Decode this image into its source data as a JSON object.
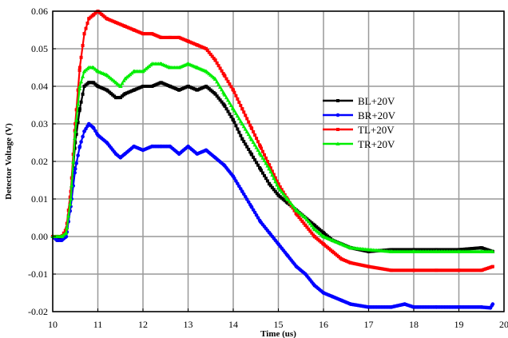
{
  "chart_data": {
    "type": "line",
    "title": "",
    "xlabel": "Time  (us)",
    "ylabel": "Detector  Voltage  (V)",
    "xlim": [
      10,
      20
    ],
    "ylim": [
      -0.02,
      0.06
    ],
    "xticks": [
      "10",
      "11",
      "12",
      "13",
      "14",
      "15",
      "16",
      "17",
      "18",
      "19",
      "20"
    ],
    "yticks": [
      "-0.02",
      "-0.01",
      "0.00",
      "0.01",
      "0.02",
      "0.03",
      "0.04",
      "0.05",
      "0.06"
    ],
    "grid": true,
    "legend_position": "center-right",
    "series": [
      {
        "name": "BL+20V",
        "color": "#000000",
        "marker": "square",
        "x": [
          10.0,
          10.1,
          10.2,
          10.3,
          10.4,
          10.5,
          10.6,
          10.7,
          10.8,
          10.9,
          11.0,
          11.2,
          11.4,
          11.5,
          11.6,
          11.8,
          12.0,
          12.2,
          12.4,
          12.6,
          12.8,
          13.0,
          13.2,
          13.4,
          13.6,
          13.8,
          14.0,
          14.2,
          14.4,
          14.6,
          14.8,
          15.0,
          15.2,
          15.4,
          15.6,
          15.8,
          16.0,
          16.2,
          16.4,
          16.6,
          17.0,
          17.5,
          18.0,
          18.5,
          19.0,
          19.5,
          19.75
        ],
        "y": [
          0.0,
          -0.001,
          0.0,
          0.001,
          0.01,
          0.025,
          0.034,
          0.04,
          0.041,
          0.041,
          0.04,
          0.039,
          0.037,
          0.037,
          0.038,
          0.039,
          0.04,
          0.04,
          0.041,
          0.04,
          0.039,
          0.04,
          0.039,
          0.04,
          0.038,
          0.035,
          0.031,
          0.026,
          0.022,
          0.018,
          0.014,
          0.011,
          0.009,
          0.007,
          0.005,
          0.003,
          0.001,
          -0.001,
          -0.002,
          -0.003,
          -0.004,
          -0.0035,
          -0.0035,
          -0.0035,
          -0.0035,
          -0.003,
          -0.004
        ]
      },
      {
        "name": "BR+20V",
        "color": "#0000ff",
        "marker": "circle",
        "x": [
          10.0,
          10.1,
          10.2,
          10.3,
          10.4,
          10.5,
          10.6,
          10.7,
          10.8,
          10.9,
          11.0,
          11.2,
          11.4,
          11.5,
          11.6,
          11.8,
          12.0,
          12.2,
          12.4,
          12.6,
          12.8,
          13.0,
          13.2,
          13.4,
          13.6,
          13.8,
          14.0,
          14.2,
          14.4,
          14.6,
          14.8,
          15.0,
          15.2,
          15.4,
          15.6,
          15.8,
          16.0,
          16.2,
          16.4,
          16.6,
          17.0,
          17.5,
          17.8,
          18.0,
          18.5,
          19.0,
          19.5,
          19.7,
          19.75
        ],
        "y": [
          0.0,
          -0.001,
          -0.001,
          0.0,
          0.008,
          0.018,
          0.024,
          0.028,
          0.03,
          0.029,
          0.027,
          0.025,
          0.022,
          0.021,
          0.022,
          0.024,
          0.023,
          0.024,
          0.024,
          0.024,
          0.022,
          0.024,
          0.022,
          0.023,
          0.021,
          0.019,
          0.016,
          0.012,
          0.008,
          0.004,
          0.001,
          -0.002,
          -0.005,
          -0.008,
          -0.01,
          -0.013,
          -0.015,
          -0.016,
          -0.017,
          -0.018,
          -0.0188,
          -0.0188,
          -0.018,
          -0.0188,
          -0.0188,
          -0.0188,
          -0.0188,
          -0.019,
          -0.018
        ]
      },
      {
        "name": "TL+20V",
        "color": "#ff0000",
        "marker": "square",
        "x": [
          10.0,
          10.1,
          10.2,
          10.3,
          10.4,
          10.5,
          10.6,
          10.7,
          10.8,
          10.9,
          11.0,
          11.2,
          11.4,
          11.6,
          11.8,
          12.0,
          12.2,
          12.4,
          12.6,
          12.8,
          13.0,
          13.2,
          13.4,
          13.6,
          13.8,
          14.0,
          14.2,
          14.4,
          14.6,
          14.8,
          15.0,
          15.2,
          15.4,
          15.6,
          15.8,
          16.0,
          16.2,
          16.4,
          16.6,
          17.0,
          17.5,
          18.0,
          18.5,
          19.0,
          19.5,
          19.75
        ],
        "y": [
          0.0,
          0.0,
          0.0,
          0.002,
          0.012,
          0.03,
          0.045,
          0.054,
          0.058,
          0.059,
          0.06,
          0.058,
          0.057,
          0.056,
          0.055,
          0.054,
          0.054,
          0.053,
          0.053,
          0.053,
          0.052,
          0.051,
          0.05,
          0.047,
          0.043,
          0.039,
          0.034,
          0.029,
          0.024,
          0.019,
          0.014,
          0.01,
          0.006,
          0.003,
          0.0,
          -0.002,
          -0.004,
          -0.006,
          -0.007,
          -0.008,
          -0.009,
          -0.009,
          -0.009,
          -0.009,
          -0.009,
          -0.008
        ]
      },
      {
        "name": "TR+20V",
        "color": "#00ee00",
        "marker": "triangle",
        "x": [
          10.0,
          10.1,
          10.2,
          10.3,
          10.4,
          10.5,
          10.6,
          10.7,
          10.8,
          10.9,
          11.0,
          11.2,
          11.4,
          11.5,
          11.6,
          11.8,
          12.0,
          12.2,
          12.4,
          12.6,
          12.8,
          13.0,
          13.2,
          13.4,
          13.6,
          13.8,
          14.0,
          14.2,
          14.4,
          14.6,
          14.8,
          15.0,
          15.2,
          15.4,
          15.6,
          15.8,
          16.0,
          16.2,
          16.4,
          16.6,
          17.0,
          17.5,
          18.0,
          18.5,
          19.0,
          19.5,
          19.75
        ],
        "y": [
          0.0,
          0.0,
          0.0,
          0.001,
          0.01,
          0.028,
          0.04,
          0.044,
          0.045,
          0.045,
          0.044,
          0.043,
          0.041,
          0.04,
          0.042,
          0.044,
          0.044,
          0.046,
          0.046,
          0.045,
          0.045,
          0.046,
          0.045,
          0.044,
          0.042,
          0.038,
          0.034,
          0.03,
          0.026,
          0.022,
          0.018,
          0.013,
          0.01,
          0.007,
          0.005,
          0.002,
          0.0,
          -0.001,
          -0.002,
          -0.003,
          -0.0035,
          -0.004,
          -0.004,
          -0.004,
          -0.004,
          -0.004,
          -0.004
        ]
      }
    ]
  }
}
